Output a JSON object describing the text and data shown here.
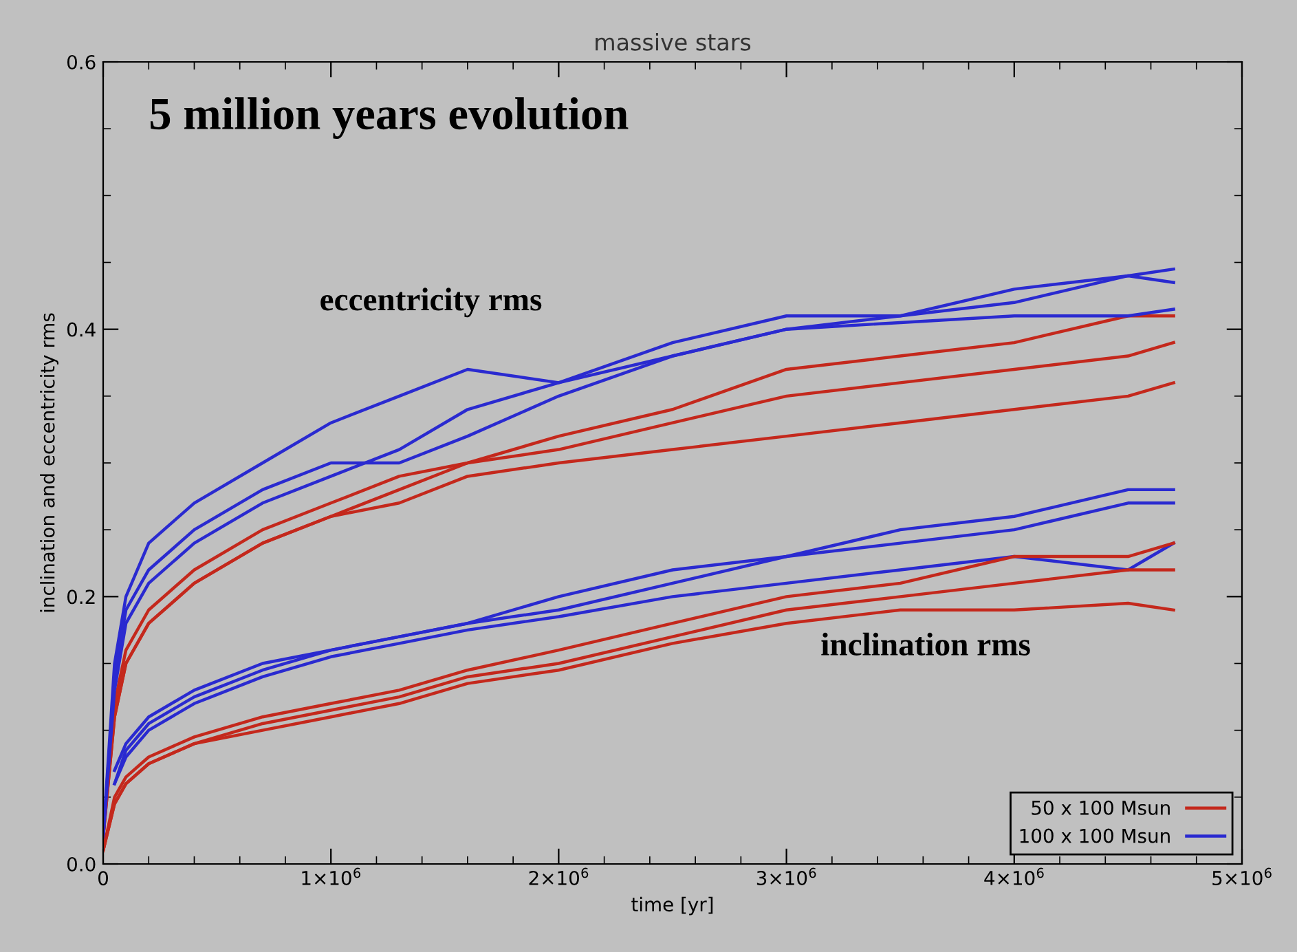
{
  "chart_data": {
    "type": "line",
    "title": "massive stars",
    "xlabel": "time [yr]",
    "ylabel": "inclination and eccentricity rms",
    "annotations": [
      "5 million years evolution",
      "eccentricity rms",
      "inclination rms"
    ],
    "x": [
      0,
      50000,
      100000,
      200000,
      400000,
      700000,
      1000000,
      1300000,
      1600000,
      2000000,
      2500000,
      3000000,
      3500000,
      4000000,
      4500000,
      4700000
    ],
    "xlim": [
      0,
      5000000
    ],
    "xticks": [
      0,
      {
        "value": 1000000,
        "label": "1×10$^{6}$"
      },
      {
        "value": 2000000,
        "label": "2×10$^{6}$"
      },
      {
        "value": 3000000,
        "label": "3×10$^{6}$"
      },
      {
        "value": 4000000,
        "label": "4×10$^{6}$"
      },
      {
        "value": 5000000,
        "label": "5×10$^{6}$"
      }
    ],
    "ylim": [
      0,
      0.6
    ],
    "yticks": [
      {
        "value": 0,
        "label": "0.0"
      },
      {
        "value": 0.2,
        "label": "0.2"
      },
      {
        "value": 0.4,
        "label": "0.4"
      },
      {
        "value": 0.6,
        "label": "0.6"
      }
    ],
    "grid": false,
    "legend": "bottom right",
    "marker": "none",
    "line_style": "solid",
    "series": [
      {
        "name": "50 x 100 Msun",
        "color": "#c4281c",
        "values": [
          0.02,
          0.12,
          0.16,
          0.19,
          0.22,
          0.25,
          0.27,
          0.29,
          0.3,
          0.32,
          0.34,
          0.37,
          0.38,
          0.39,
          0.41,
          0.41
        ]
      },
      {
        "name": "100 x 100 Msun",
        "color": "#2a2ad0",
        "values": [
          0.02,
          0.15,
          0.2,
          0.24,
          0.27,
          0.3,
          0.33,
          0.35,
          0.37,
          0.36,
          0.39,
          0.41,
          0.41,
          0.42,
          0.44,
          0.445
        ]
      },
      {
        "color": "#c4281c",
        "values": [
          0.02,
          0.11,
          0.15,
          0.18,
          0.21,
          0.24,
          0.26,
          0.28,
          0.3,
          0.31,
          0.33,
          0.35,
          0.36,
          0.37,
          0.38,
          0.39
        ]
      },
      {
        "color": "#c4281c",
        "values": [
          0.02,
          0.11,
          0.15,
          0.18,
          0.21,
          0.24,
          0.26,
          0.27,
          0.29,
          0.3,
          0.31,
          0.32,
          0.33,
          0.34,
          0.35,
          0.36
        ]
      },
      {
        "color": "#2a2ad0",
        "values": [
          0.02,
          0.14,
          0.19,
          0.22,
          0.25,
          0.28,
          0.3,
          0.3,
          0.32,
          0.35,
          0.38,
          0.4,
          0.41,
          0.43,
          0.44,
          0.435
        ]
      },
      {
        "color": "#2a2ad0",
        "values": [
          0.02,
          0.13,
          0.18,
          0.21,
          0.24,
          0.27,
          0.29,
          0.31,
          0.34,
          0.36,
          0.38,
          0.4,
          0.405,
          0.41,
          0.41,
          0.415
        ]
      },
      {
        "color": "#2a2ad0",
        "values": [
          null,
          0.07,
          0.09,
          0.11,
          0.13,
          0.15,
          0.16,
          0.17,
          0.18,
          0.2,
          0.22,
          0.23,
          0.25,
          0.26,
          0.28,
          0.28
        ]
      },
      {
        "color": "#2a2ad0",
        "values": [
          null,
          0.06,
          0.085,
          0.105,
          0.125,
          0.145,
          0.16,
          0.17,
          0.18,
          0.19,
          0.21,
          0.23,
          0.24,
          0.25,
          0.27,
          0.27
        ]
      },
      {
        "color": "#2a2ad0",
        "values": [
          null,
          0.06,
          0.08,
          0.1,
          0.12,
          0.14,
          0.155,
          0.165,
          0.175,
          0.185,
          0.2,
          0.21,
          0.22,
          0.23,
          0.22,
          0.24
        ]
      },
      {
        "color": "#c4281c",
        "values": [
          0.01,
          0.05,
          0.065,
          0.08,
          0.095,
          0.11,
          0.12,
          0.13,
          0.145,
          0.16,
          0.18,
          0.2,
          0.21,
          0.23,
          0.23,
          0.24
        ]
      },
      {
        "color": "#c4281c",
        "values": [
          0.01,
          0.045,
          0.06,
          0.075,
          0.09,
          0.105,
          0.115,
          0.125,
          0.14,
          0.15,
          0.17,
          0.19,
          0.2,
          0.21,
          0.22,
          0.22
        ]
      },
      {
        "color": "#c4281c",
        "values": [
          0.01,
          0.045,
          0.06,
          0.075,
          0.09,
          0.1,
          0.11,
          0.12,
          0.135,
          0.145,
          0.165,
          0.18,
          0.19,
          0.19,
          0.195,
          0.19
        ]
      }
    ]
  }
}
